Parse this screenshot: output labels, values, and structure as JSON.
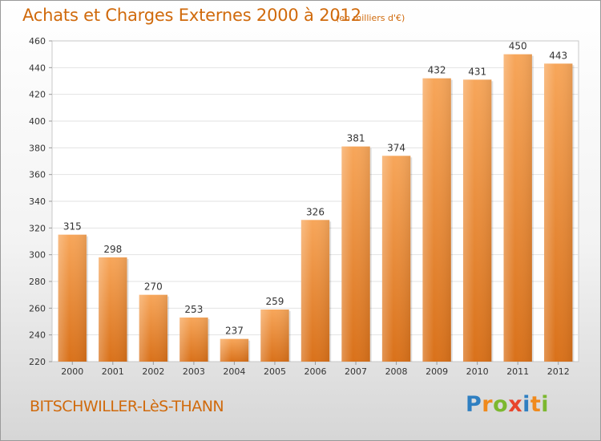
{
  "title": "Achats et Charges Externes 2000 à 2012",
  "subtitle": "(en milliers d'€)",
  "city": "BITSCHWILLER-LèS-THANN",
  "logo": {
    "letters": [
      "P",
      "r",
      "o",
      "x",
      "i",
      "t",
      "i"
    ]
  },
  "colors": {
    "title": "#d06a0c",
    "bar_top": "#f7a65a",
    "bar_bottom": "#d9711a",
    "logo": [
      "#2f7fc1",
      "#f08a1c",
      "#7cb82f",
      "#e8452c",
      "#2f7fc1",
      "#f08a1c",
      "#7cb82f"
    ]
  },
  "chart_data": {
    "type": "bar",
    "categories": [
      "2000",
      "2001",
      "2002",
      "2003",
      "2004",
      "2005",
      "2006",
      "2007",
      "2008",
      "2009",
      "2010",
      "2011",
      "2012"
    ],
    "values": [
      315,
      298,
      270,
      253,
      237,
      259,
      326,
      381,
      374,
      432,
      431,
      450,
      443
    ],
    "yticks": [
      "220",
      "240",
      "260",
      "280",
      "300",
      "320",
      "340",
      "360",
      "380",
      "400",
      "420",
      "440",
      "460"
    ],
    "ylim": [
      220,
      460
    ],
    "grid": true,
    "legend": "none"
  }
}
